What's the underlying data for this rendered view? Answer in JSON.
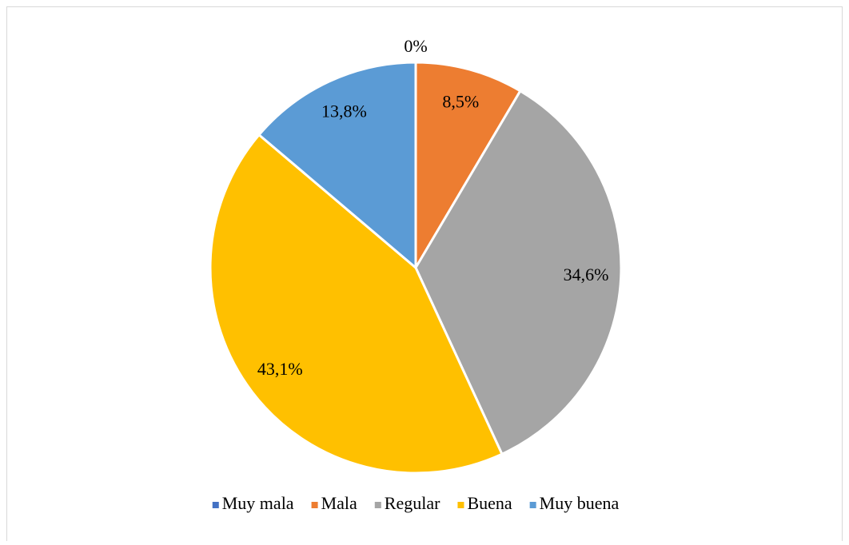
{
  "chart_data": {
    "type": "pie",
    "categories": [
      "Muy mala",
      "Mala",
      "Regular",
      "Buena",
      "Muy buena"
    ],
    "values": [
      0,
      8.5,
      34.6,
      43.1,
      13.8
    ],
    "value_labels": [
      "0%",
      "8,5%",
      "34,6%",
      "43,1%",
      "13,8%"
    ],
    "colors": [
      "#4472c4",
      "#ed7d31",
      "#a5a5a5",
      "#ffc000",
      "#5b9bd5"
    ],
    "legend": "bottom"
  }
}
